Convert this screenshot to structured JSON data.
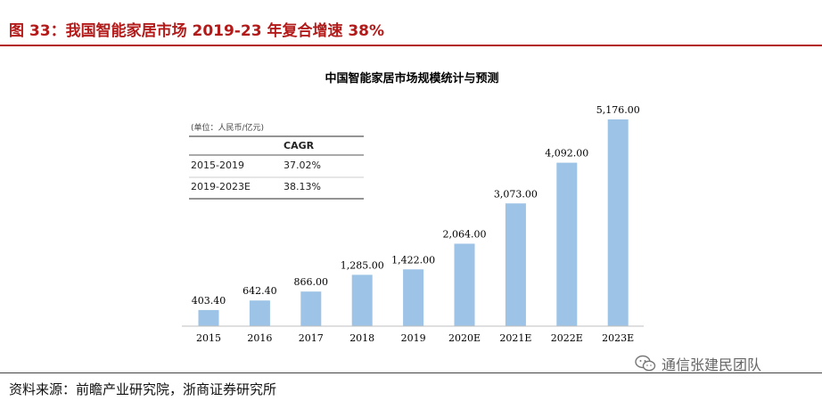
{
  "figure": {
    "title": "图 33：我国智能家居市场 2019-23 年复合增速 38%",
    "source": "资料来源：前瞻产业研究院，浙商证券研究所",
    "watermark": "通信张建民团队",
    "watermark_icon": "wechat-icon"
  },
  "cagr_table": {
    "unit_note": "(单位：人民币/亿元)",
    "header": [
      "",
      "CAGR"
    ],
    "rows": [
      [
        "2015-2019",
        "37.02%"
      ],
      [
        "2019-2023E",
        "38.13%"
      ]
    ]
  },
  "chart_data": {
    "type": "bar",
    "title": "中国智能家居市场规模统计与预测",
    "xlabel": "",
    "ylabel": "",
    "categories": [
      "2015",
      "2016",
      "2017",
      "2018",
      "2019",
      "2020E",
      "2021E",
      "2022E",
      "2023E"
    ],
    "values": [
      403.4,
      642.4,
      866.0,
      1285.0,
      1422.0,
      2064.0,
      3073.0,
      4092.0,
      5176.0
    ],
    "value_labels": [
      "403.40",
      "642.40",
      "866.00",
      "1,285.00",
      "1,422.00",
      "2,064.00",
      "3,073.00",
      "4,092.00",
      "5,176.00"
    ],
    "ylim": [
      0,
      5176
    ],
    "bar_color": "#9dc3e6",
    "grid": false,
    "legend": "none"
  }
}
